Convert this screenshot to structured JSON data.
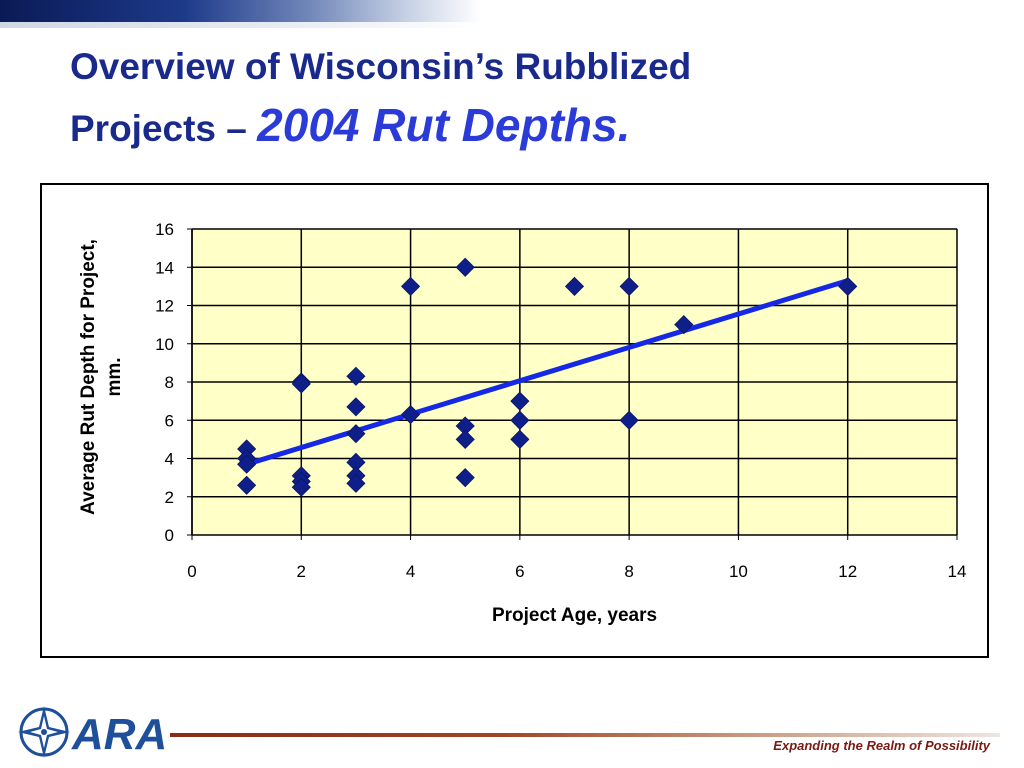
{
  "slide": {
    "title_line1": "Overview of Wisconsin’s Rubblized",
    "title_line2_prefix": "Projects – ",
    "title_line2_accent": "2004 Rut Depths.",
    "logo_text": "ARA",
    "tagline": "Expanding the Realm of Possibility"
  },
  "colors": {
    "title": "#1a2a8c",
    "title_accent": "#2b3bd8",
    "plot_area": "#ffffc8",
    "marker": "#0f1f8a",
    "trendline": "#1428e6",
    "tagline": "#7a1a12"
  },
  "chart_data": {
    "type": "scatter",
    "title": "",
    "xlabel": "Project Age, years",
    "ylabel": "Average Rut Depth for Project, mm.",
    "xlim": [
      0,
      14
    ],
    "ylim": [
      0,
      16
    ],
    "x_ticks": [
      0,
      2,
      4,
      6,
      8,
      10,
      12,
      14
    ],
    "y_ticks": [
      0,
      2,
      4,
      6,
      8,
      10,
      12,
      14,
      16
    ],
    "grid": true,
    "marker": "diamond",
    "points": [
      {
        "x": 1,
        "y": 4.5
      },
      {
        "x": 1,
        "y": 4.0
      },
      {
        "x": 1,
        "y": 3.7
      },
      {
        "x": 1,
        "y": 2.6
      },
      {
        "x": 2,
        "y": 8.0
      },
      {
        "x": 2,
        "y": 7.9
      },
      {
        "x": 2,
        "y": 3.1
      },
      {
        "x": 2,
        "y": 2.8
      },
      {
        "x": 2,
        "y": 2.5
      },
      {
        "x": 3,
        "y": 8.3
      },
      {
        "x": 3,
        "y": 6.7
      },
      {
        "x": 3,
        "y": 5.3
      },
      {
        "x": 3,
        "y": 3.8
      },
      {
        "x": 3,
        "y": 3.1
      },
      {
        "x": 3,
        "y": 2.7
      },
      {
        "x": 4,
        "y": 13.0
      },
      {
        "x": 4,
        "y": 6.3
      },
      {
        "x": 5,
        "y": 14.0
      },
      {
        "x": 5,
        "y": 5.7
      },
      {
        "x": 5,
        "y": 5.0
      },
      {
        "x": 5,
        "y": 3.0
      },
      {
        "x": 6,
        "y": 7.0
      },
      {
        "x": 6,
        "y": 6.0
      },
      {
        "x": 6,
        "y": 5.0
      },
      {
        "x": 7,
        "y": 13.0
      },
      {
        "x": 8,
        "y": 13.0
      },
      {
        "x": 8,
        "y": 6.0
      },
      {
        "x": 9,
        "y": 11.0
      },
      {
        "x": 12,
        "y": 13.0
      }
    ],
    "trendline": {
      "type": "linear",
      "from": {
        "x": 1,
        "y": 3.7
      },
      "to": {
        "x": 12,
        "y": 13.3
      }
    }
  }
}
